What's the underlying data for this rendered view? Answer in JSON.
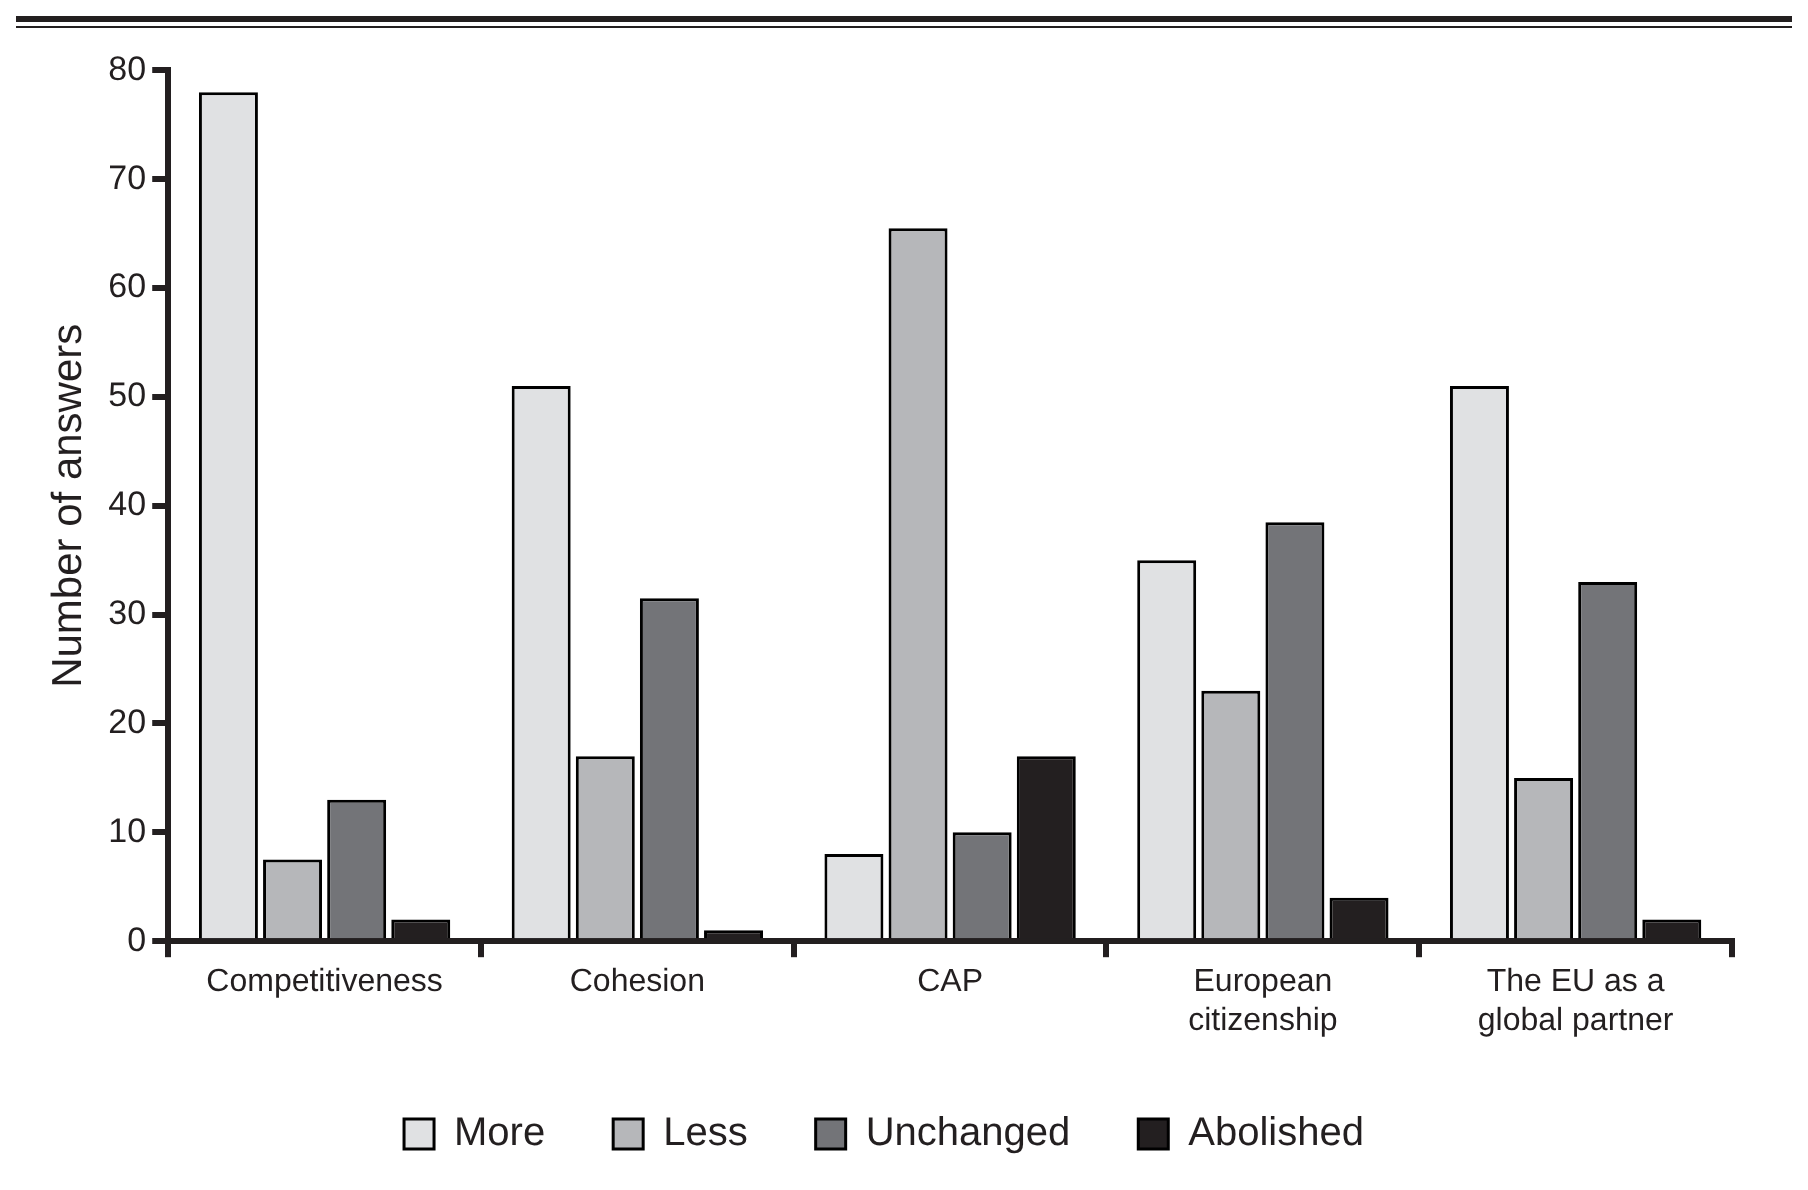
{
  "chart_data": {
    "type": "bar",
    "ylabel": "Number of answers",
    "categories": [
      "Competitiveness",
      "Cohesion",
      "CAP",
      "European citizenship",
      "The EU as a global partner"
    ],
    "series": [
      {
        "name": "More",
        "color": "#e0e1e3",
        "values": [
          78,
          51,
          8,
          35,
          51
        ]
      },
      {
        "name": "Less",
        "color": "#b6b7ba",
        "values": [
          7.5,
          17,
          65.5,
          23,
          15
        ]
      },
      {
        "name": "Unchanged",
        "color": "#737478",
        "values": [
          13,
          31.5,
          10,
          38.5,
          33
        ]
      },
      {
        "name": "Abolished",
        "color": "#231f20",
        "values": [
          2,
          1,
          17,
          4,
          2
        ]
      }
    ],
    "ylim": [
      0,
      80
    ],
    "yticks": [
      0,
      10,
      20,
      30,
      40,
      50,
      60,
      70,
      80
    ],
    "grid": false,
    "legend": "bottom"
  }
}
